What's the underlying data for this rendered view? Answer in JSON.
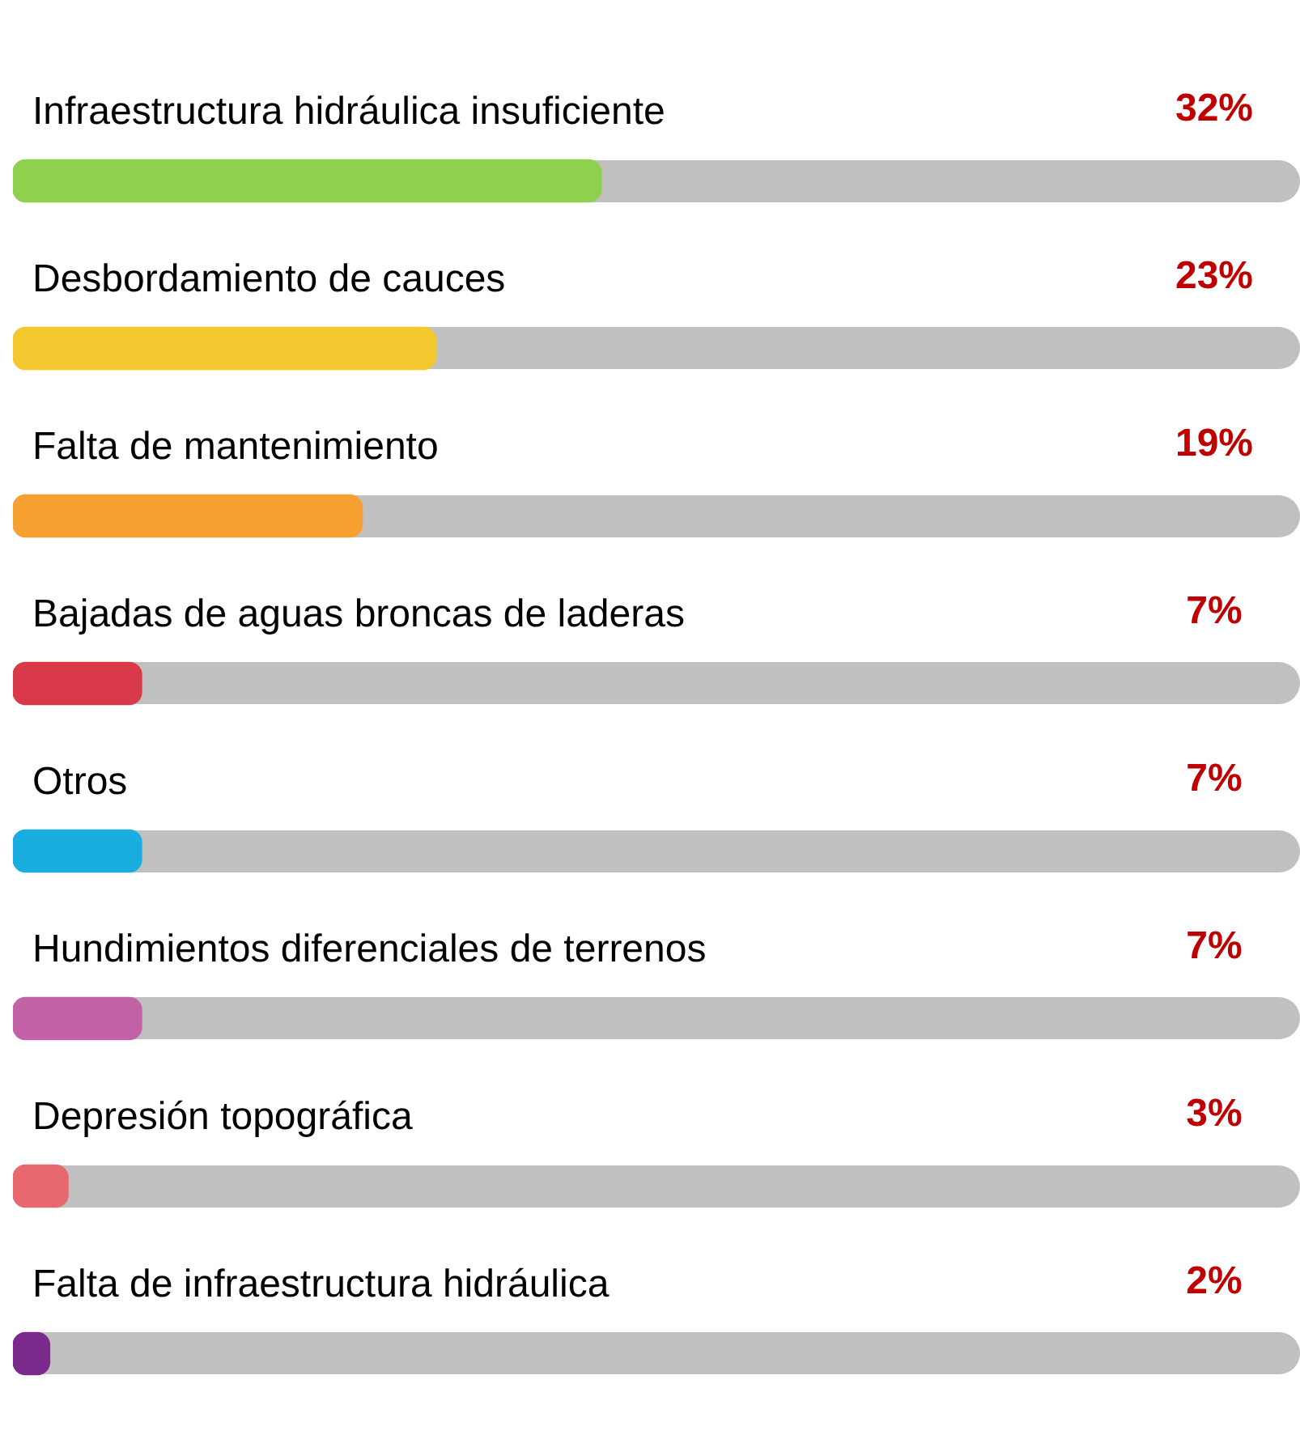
{
  "chart_data": {
    "type": "bar",
    "orientation": "horizontal",
    "categories": [
      "Infraestructura hidráulica insuficiente",
      "Desbordamiento de cauces",
      "Falta de mantenimiento",
      "Bajadas de aguas broncas de laderas",
      "Otros",
      "Hundimientos diferenciales de terrenos",
      "Depresión topográfica",
      "Falta de infraestructura hidráulica"
    ],
    "values": [
      32,
      23,
      19,
      7,
      7,
      7,
      3,
      2
    ],
    "colors": [
      "#8fd14f",
      "#f2c82e",
      "#f5a030",
      "#d83a4a",
      "#1aaee0",
      "#c462a8",
      "#e86870",
      "#7a2a8a"
    ],
    "xlim": [
      0,
      70
    ],
    "data_labels": true,
    "value_labels": [
      "32%",
      "23%",
      "19%",
      "7%",
      "7%",
      "7%",
      "3%",
      "2%"
    ],
    "tick_labels": false,
    "legend": false
  }
}
